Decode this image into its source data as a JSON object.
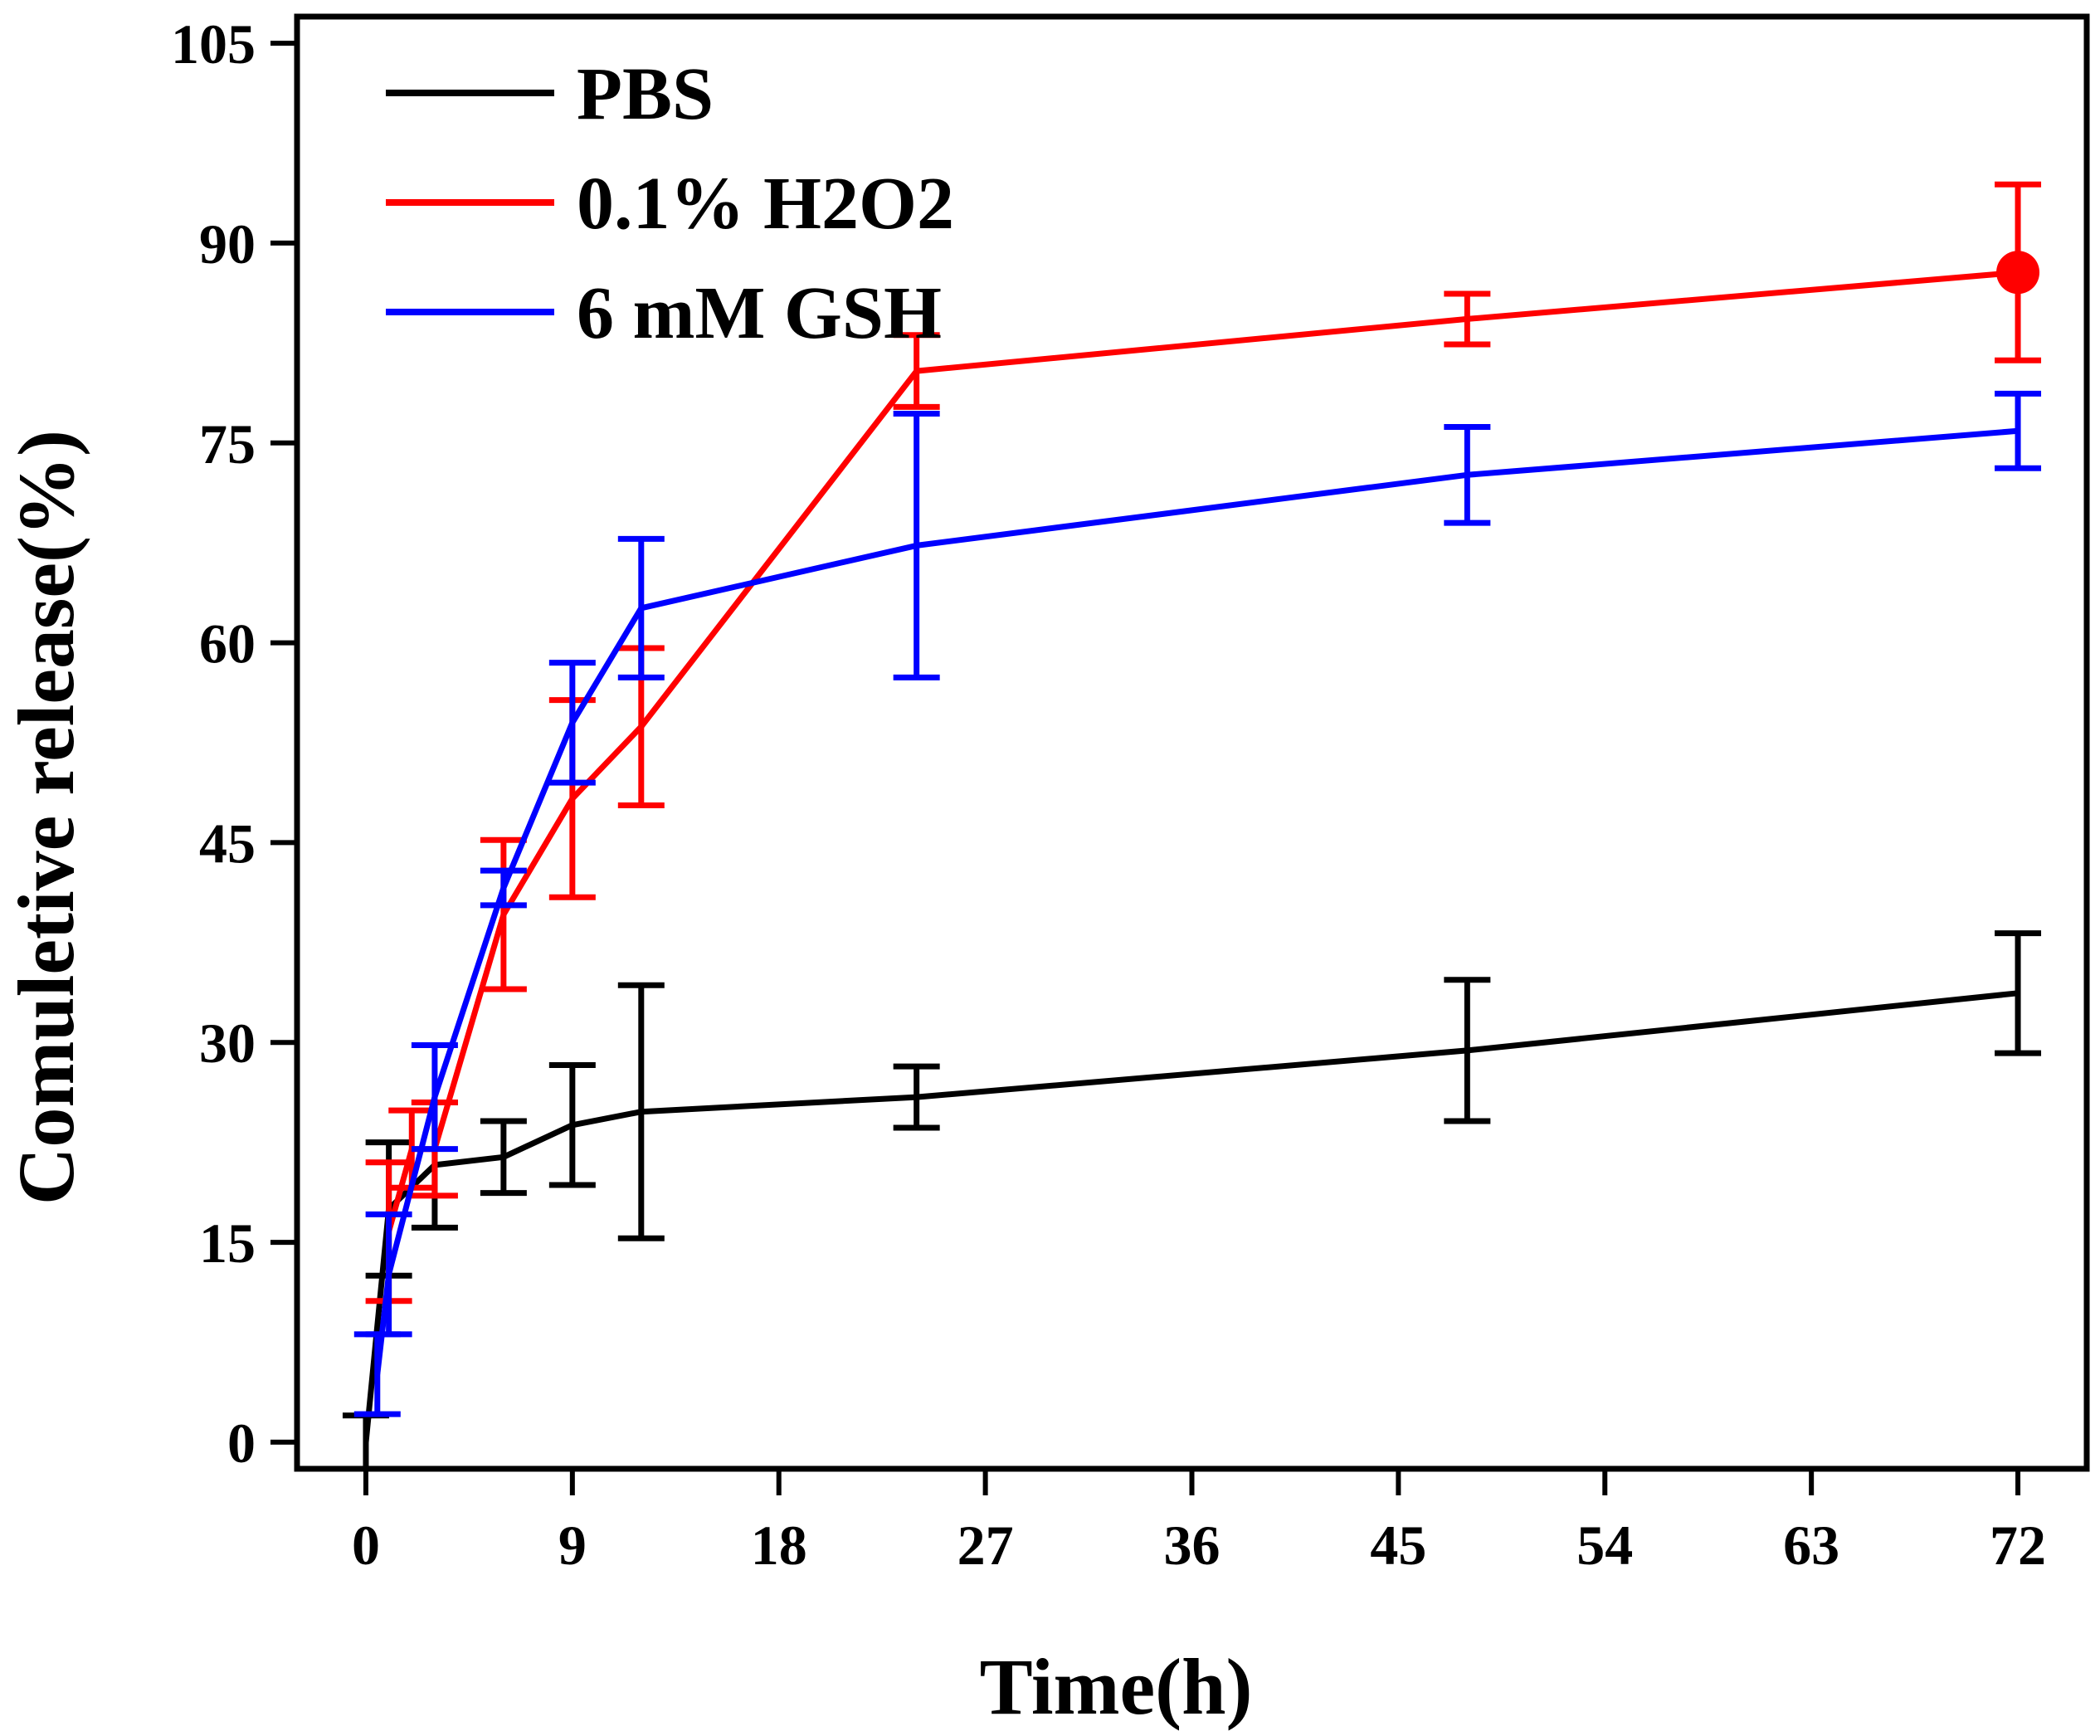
{
  "chart_data": {
    "type": "line",
    "xlabel": "Time(h)",
    "ylabel": "Comuletive release(%)",
    "xlim": [
      -3,
      75
    ],
    "ylim": [
      -2,
      107
    ],
    "xticks": [
      0,
      9,
      18,
      27,
      36,
      45,
      54,
      63,
      72
    ],
    "yticks": [
      0,
      15,
      30,
      45,
      60,
      75,
      90,
      105
    ],
    "legend_position": "top-left",
    "series": [
      {
        "name": "PBS",
        "color": "#000000",
        "x": [
          0,
          1,
          3,
          6,
          9,
          12,
          24,
          48,
          72
        ],
        "y": [
          0,
          17.5,
          20.8,
          21.4,
          23.8,
          24.8,
          25.9,
          29.4,
          33.7
        ],
        "err": [
          2,
          5,
          4.7,
          2.7,
          4.5,
          9.5,
          2.3,
          5.3,
          4.5
        ]
      },
      {
        "name": "0.1% H2O2",
        "color": "#ff0000",
        "x": [
          1,
          2,
          3,
          6,
          9,
          12,
          24,
          48,
          72
        ],
        "y": [
          15.8,
          22,
          22,
          39.6,
          48.3,
          53.7,
          80.4,
          84.3,
          87.8
        ],
        "err": [
          5.2,
          2.9,
          3.5,
          5.6,
          7.4,
          5.9,
          2.7,
          1.9,
          6.6
        ]
      },
      {
        "name": "6 mM GSH",
        "color": "#0000ff",
        "x": [
          0.5,
          1,
          3,
          6,
          9,
          12,
          24,
          48,
          72
        ],
        "y": [
          5.1,
          12.6,
          25.9,
          41.6,
          54,
          62.6,
          67.3,
          72.6,
          75.9
        ],
        "err": [
          3,
          4.5,
          3.9,
          1.3,
          4.5,
          5.2,
          9.9,
          3.6,
          2.8
        ]
      }
    ]
  }
}
